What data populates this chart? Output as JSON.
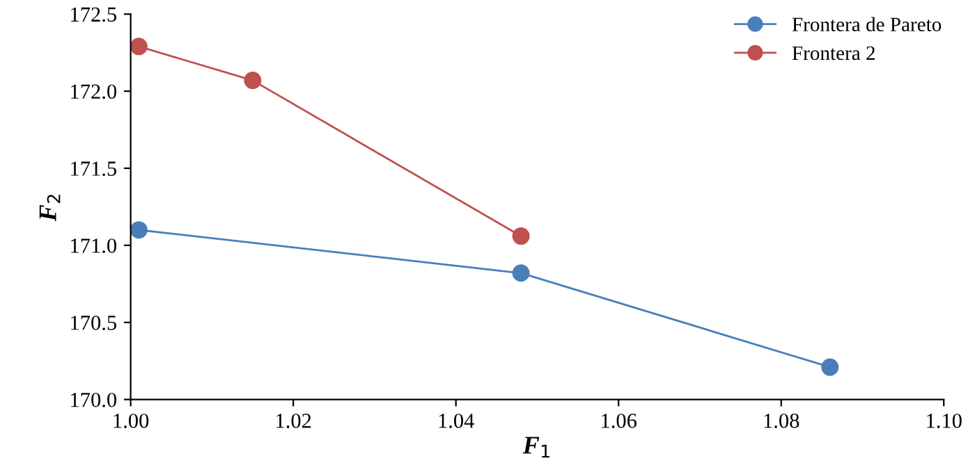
{
  "chart_data": {
    "type": "line",
    "xlabel": "F$_{1}$",
    "ylabel": "F$_{2}$",
    "xlim": [
      1.0,
      1.1
    ],
    "xticks": [
      {
        "value": 1.0,
        "label": "1.00"
      },
      {
        "value": 1.02,
        "label": "1.02"
      },
      {
        "value": 1.04,
        "label": "1.04"
      },
      {
        "value": 1.06,
        "label": "1.06"
      },
      {
        "value": 1.08,
        "label": "1.08"
      },
      {
        "value": 1.1,
        "label": "1.10"
      }
    ],
    "ylim": [
      170.0,
      172.5
    ],
    "yticks": [
      {
        "value": 170.0,
        "label": "170.0"
      },
      {
        "value": 170.5,
        "label": "170.5"
      },
      {
        "value": 171.0,
        "label": "171.0"
      },
      {
        "value": 171.5,
        "label": "171.5"
      },
      {
        "value": 172.0,
        "label": "172.0"
      },
      172.5
    ],
    "grid": false,
    "legend": "top right",
    "marker": "circle",
    "line_style": "solid",
    "series": [
      {
        "name": "Frontera de Pareto",
        "color": "#4a7ebb",
        "x": [
          1.001,
          1.048,
          1.086
        ],
        "values": [
          171.1,
          170.82,
          170.21
        ]
      },
      {
        "name": "Frontera 2",
        "color": "#c0504d",
        "x": [
          1.001,
          1.015,
          1.048
        ],
        "values": [
          172.29,
          172.07,
          171.06
        ]
      }
    ]
  }
}
